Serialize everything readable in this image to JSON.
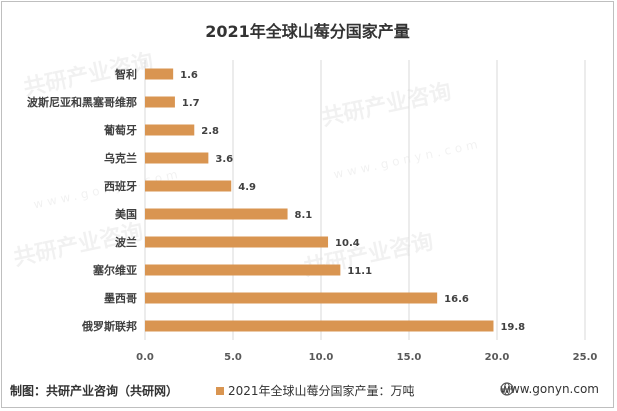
{
  "chart_data": {
    "type": "bar",
    "orientation": "horizontal",
    "title": "2021年全球山莓分国家产量",
    "categories": [
      "智利",
      "波斯尼亚和黑塞哥维那",
      "葡萄牙",
      "乌克兰",
      "西班牙",
      "美国",
      "波兰",
      "塞尔维亚",
      "墨西哥",
      "俄罗斯联邦"
    ],
    "series": [
      {
        "name": "2021年全球山莓分国家产量：万吨",
        "values": [
          1.6,
          1.7,
          2.8,
          3.6,
          4.9,
          8.1,
          10.4,
          11.1,
          16.6,
          19.8
        ]
      }
    ],
    "data_labels": [
      "1.6",
      "1.7",
      "2.8",
      "3.6",
      "4.9",
      "8.1",
      "10.4",
      "11.1",
      "16.6",
      "19.8"
    ],
    "x_ticks": [
      "0.0",
      "5.0",
      "10.0",
      "15.0",
      "20.0",
      "25.0"
    ],
    "xlim": [
      0,
      25
    ],
    "grid": true,
    "legend_position": "bottom",
    "bar_color": "#D99551"
  },
  "footer": {
    "source": "制图：共研产业咨询（共研网）",
    "website": "www.gonyn.com"
  },
  "watermark": {
    "text": "共研产业咨询",
    "sub": "www.gonyn.com"
  }
}
